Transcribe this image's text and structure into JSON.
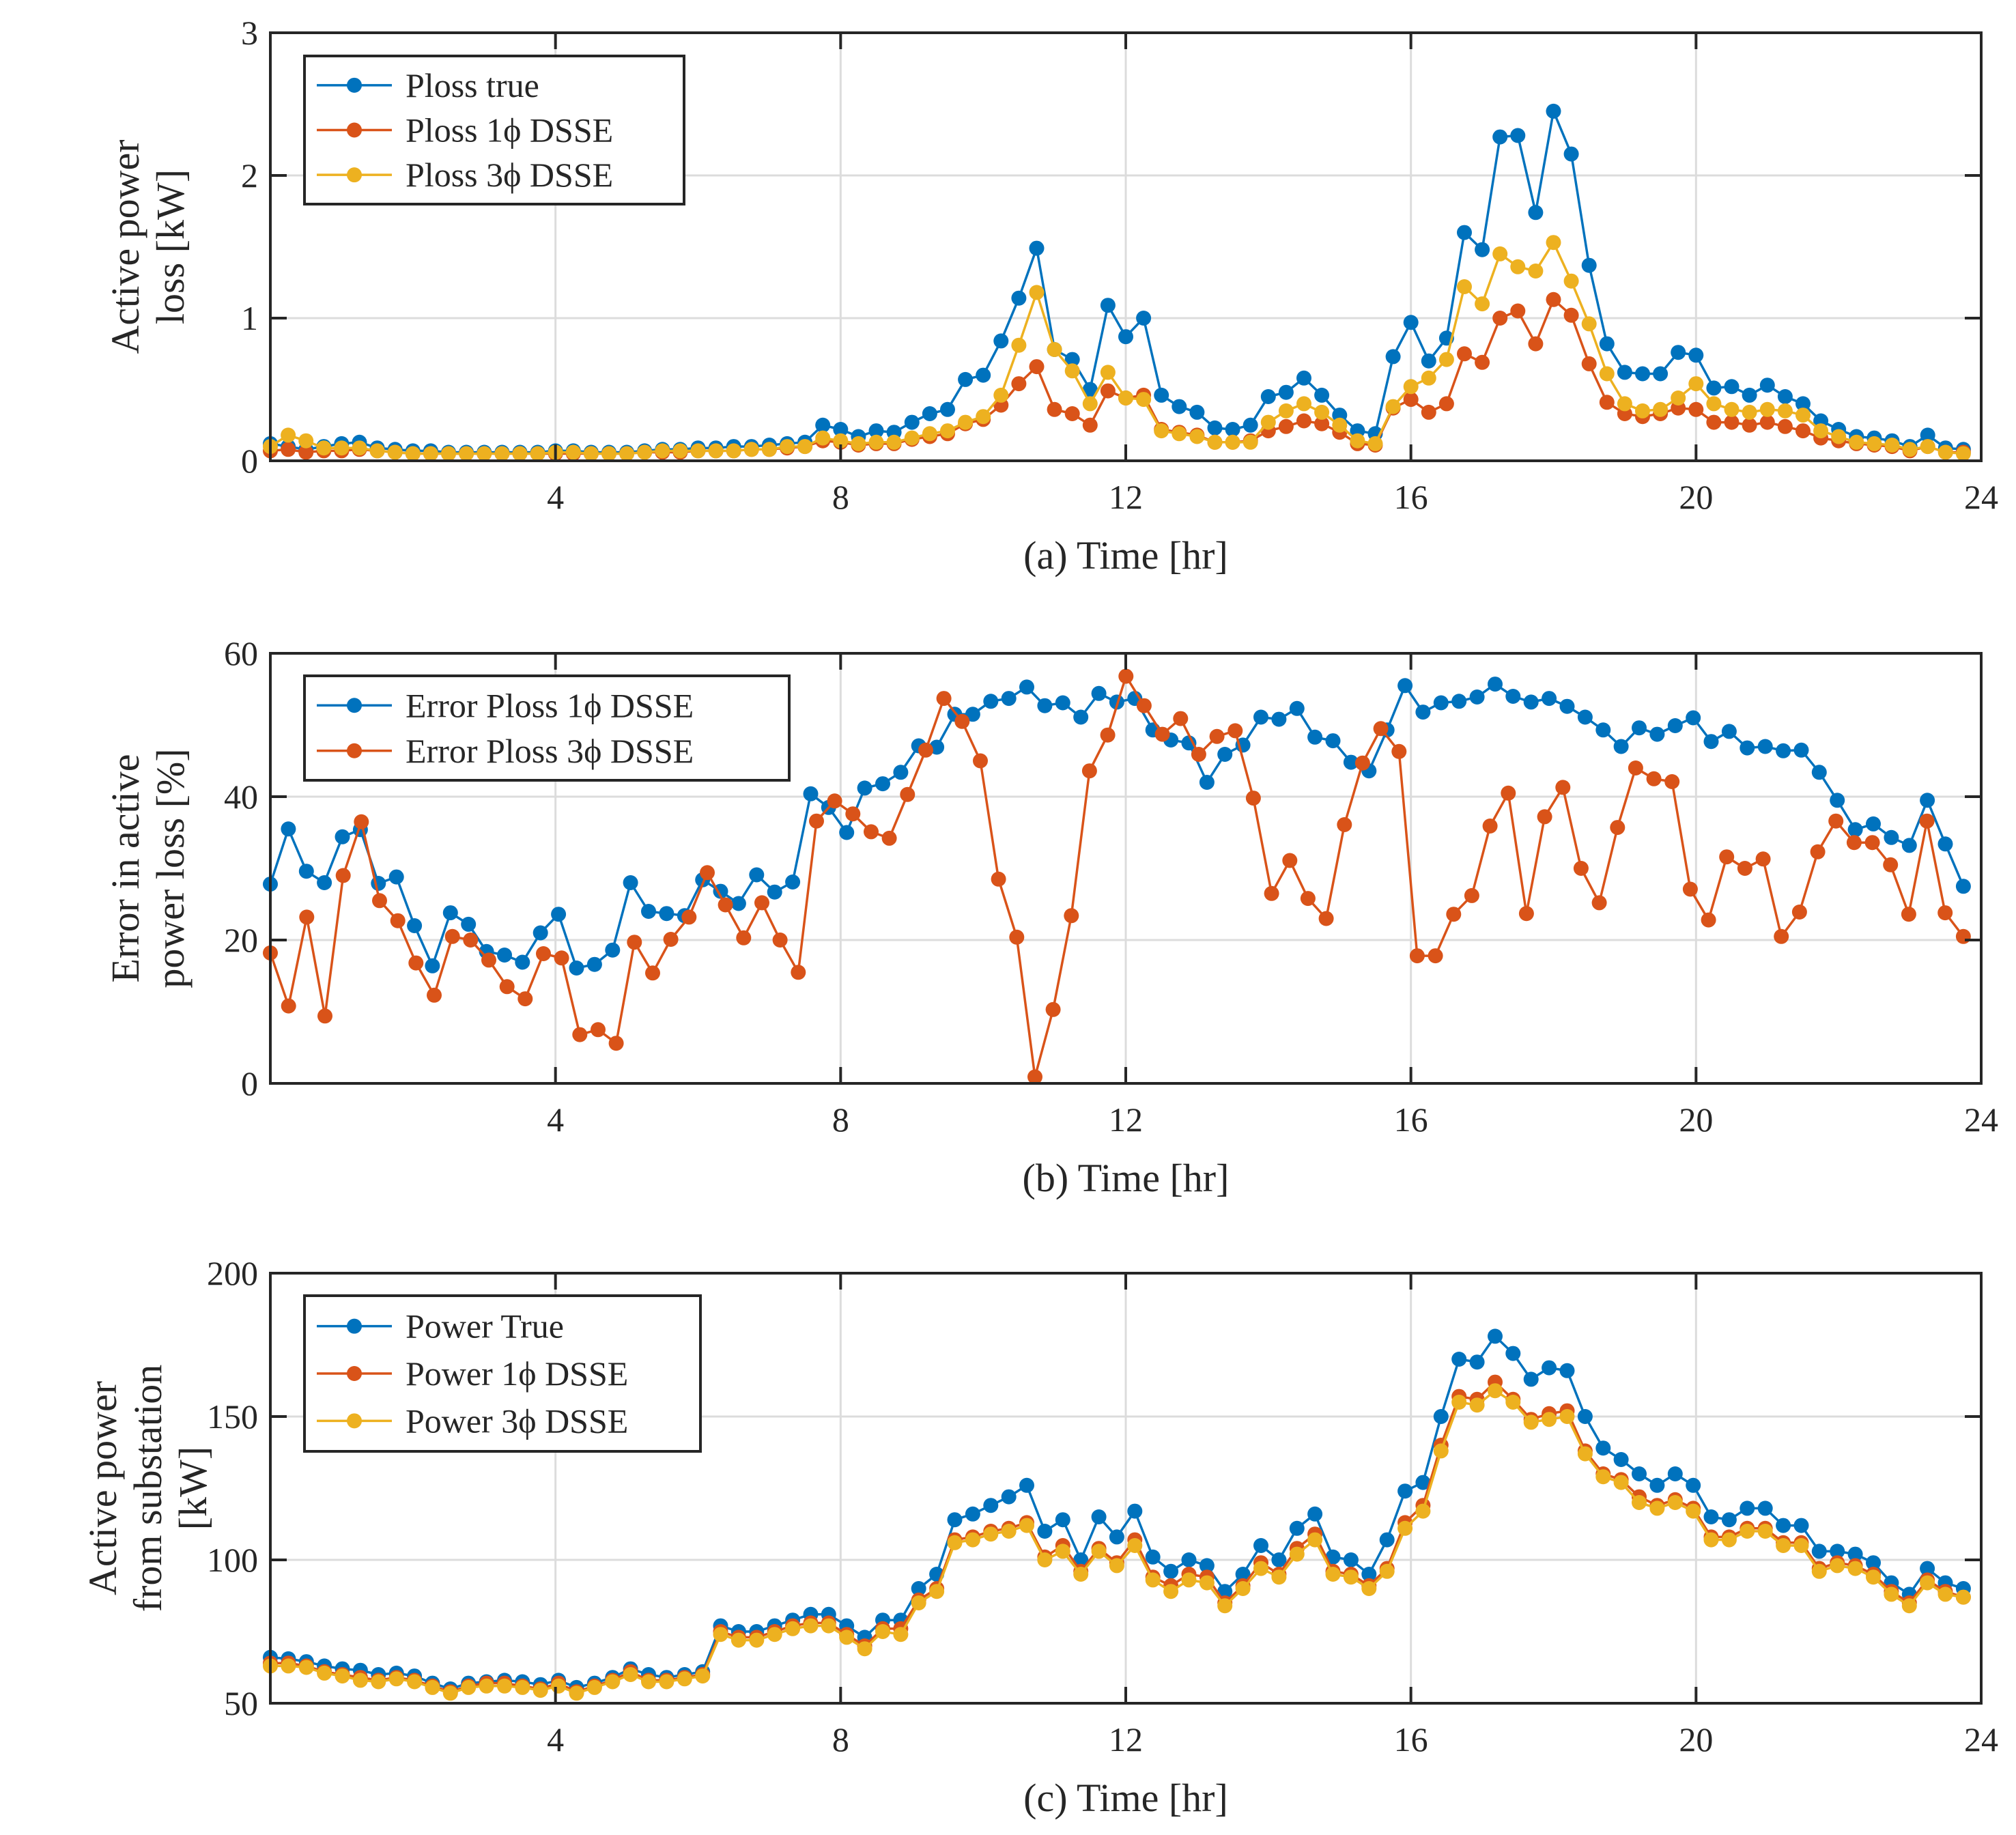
{
  "chart_data": [
    {
      "type": "line",
      "title": "",
      "xlabel": "(a) Time [hr]",
      "ylabel_lines": [
        "Active power",
        "loss [kW]"
      ],
      "xlim": [
        0,
        24
      ],
      "ylim": [
        0,
        3
      ],
      "xticks": [
        4,
        8,
        12,
        16,
        20,
        24
      ],
      "yticks": [
        0,
        1,
        2,
        3
      ],
      "grid": true,
      "legend_position": "top-left",
      "series": [
        {
          "name": "Ploss true",
          "color": "#0072BD",
          "values": [
            0.12,
            0.1,
            0.08,
            0.1,
            0.12,
            0.13,
            0.09,
            0.08,
            0.07,
            0.07,
            0.06,
            0.06,
            0.06,
            0.06,
            0.06,
            0.06,
            0.07,
            0.07,
            0.06,
            0.06,
            0.06,
            0.07,
            0.08,
            0.08,
            0.09,
            0.09,
            0.1,
            0.1,
            0.11,
            0.12,
            0.13,
            0.25,
            0.22,
            0.17,
            0.21,
            0.2,
            0.27,
            0.33,
            0.36,
            0.57,
            0.6,
            0.84,
            1.14,
            1.49,
            0.78,
            0.71,
            0.5,
            1.09,
            0.87,
            1.0,
            0.46,
            0.38,
            0.34,
            0.23,
            0.22,
            0.25,
            0.45,
            0.48,
            0.58,
            0.46,
            0.32,
            0.21,
            0.19,
            0.73,
            0.97,
            0.7,
            0.86,
            1.6,
            1.48,
            2.27,
            2.28,
            1.74,
            2.45,
            2.15,
            1.37,
            0.82,
            0.62,
            0.61,
            0.61,
            0.76,
            0.74,
            0.51,
            0.52,
            0.46,
            0.53,
            0.45,
            0.4,
            0.28,
            0.22,
            0.17,
            0.16,
            0.14,
            0.1,
            0.18,
            0.09,
            0.08
          ]
        },
        {
          "name": "Ploss 1ϕ DSSE",
          "color": "#D95319",
          "values": [
            0.07,
            0.08,
            0.06,
            0.07,
            0.07,
            0.08,
            0.07,
            0.06,
            0.05,
            0.05,
            0.05,
            0.05,
            0.05,
            0.05,
            0.05,
            0.05,
            0.05,
            0.05,
            0.05,
            0.05,
            0.05,
            0.06,
            0.06,
            0.06,
            0.07,
            0.07,
            0.07,
            0.08,
            0.08,
            0.09,
            0.1,
            0.14,
            0.13,
            0.11,
            0.12,
            0.12,
            0.15,
            0.17,
            0.19,
            0.26,
            0.29,
            0.39,
            0.54,
            0.66,
            0.36,
            0.33,
            0.25,
            0.49,
            0.44,
            0.46,
            0.22,
            0.2,
            0.18,
            0.13,
            0.13,
            0.14,
            0.21,
            0.24,
            0.28,
            0.26,
            0.2,
            0.12,
            0.11,
            0.37,
            0.43,
            0.34,
            0.4,
            0.75,
            0.69,
            1.0,
            1.05,
            0.82,
            1.13,
            1.02,
            0.68,
            0.41,
            0.33,
            0.31,
            0.33,
            0.37,
            0.36,
            0.27,
            0.27,
            0.25,
            0.27,
            0.24,
            0.21,
            0.16,
            0.14,
            0.12,
            0.11,
            0.1,
            0.07,
            0.1,
            0.06,
            0.06
          ]
        },
        {
          "name": "Ploss 3ϕ DSSE",
          "color": "#EDB120",
          "values": [
            0.1,
            0.18,
            0.14,
            0.09,
            0.09,
            0.09,
            0.07,
            0.06,
            0.05,
            0.05,
            0.05,
            0.05,
            0.05,
            0.05,
            0.05,
            0.05,
            0.06,
            0.06,
            0.05,
            0.05,
            0.05,
            0.06,
            0.07,
            0.07,
            0.07,
            0.07,
            0.07,
            0.08,
            0.08,
            0.1,
            0.1,
            0.16,
            0.14,
            0.12,
            0.13,
            0.13,
            0.16,
            0.19,
            0.21,
            0.27,
            0.31,
            0.46,
            0.81,
            1.18,
            0.78,
            0.63,
            0.4,
            0.62,
            0.44,
            0.43,
            0.21,
            0.19,
            0.17,
            0.13,
            0.13,
            0.13,
            0.27,
            0.35,
            0.4,
            0.34,
            0.25,
            0.14,
            0.12,
            0.38,
            0.52,
            0.58,
            0.71,
            1.22,
            1.1,
            1.45,
            1.36,
            1.33,
            1.53,
            1.26,
            0.96,
            0.61,
            0.4,
            0.35,
            0.36,
            0.44,
            0.54,
            0.4,
            0.36,
            0.34,
            0.36,
            0.35,
            0.32,
            0.21,
            0.17,
            0.13,
            0.12,
            0.11,
            0.08,
            0.1,
            0.06,
            0.05
          ]
        }
      ]
    },
    {
      "type": "line",
      "title": "",
      "xlabel": "(b) Time [hr]",
      "ylabel_lines": [
        "Error in active",
        "power loss [%]"
      ],
      "xlim": [
        0,
        24
      ],
      "ylim": [
        0,
        60
      ],
      "xticks": [
        4,
        8,
        12,
        16,
        20,
        24
      ],
      "yticks": [
        0,
        20,
        40,
        60
      ],
      "grid": true,
      "legend_position": "top-left",
      "series": [
        {
          "name": "Error Ploss 1ϕ DSSE",
          "color": "#0072BD",
          "values": [
            27.8,
            35.5,
            29.6,
            28.0,
            34.4,
            35.4,
            27.9,
            28.8,
            22.0,
            16.4,
            23.8,
            22.2,
            18.4,
            17.9,
            16.9,
            21.0,
            23.6,
            16.1,
            16.6,
            18.6,
            28.0,
            24.0,
            23.7,
            23.4,
            28.4,
            26.8,
            25.1,
            29.1,
            26.7,
            28.1,
            40.4,
            38.5,
            35.0,
            41.2,
            41.8,
            43.4,
            47.1,
            46.9,
            51.5,
            51.5,
            53.3,
            53.7,
            55.3,
            52.7,
            53.1,
            51.1,
            54.4,
            53.2,
            53.7,
            49.3,
            47.9,
            47.5,
            42.0,
            45.9,
            47.2,
            51.1,
            50.8,
            52.3,
            48.3,
            47.8,
            44.8,
            43.6,
            49.3,
            55.5,
            51.8,
            53.1,
            53.3,
            53.9,
            55.7,
            54.0,
            53.2,
            53.7,
            52.6,
            51.1,
            49.3,
            47.0,
            49.6,
            48.7,
            49.9,
            51.0,
            47.7,
            49.1,
            46.8,
            47.0,
            46.4,
            46.5,
            43.4,
            39.5,
            35.4,
            36.2,
            34.3,
            33.2,
            39.5,
            33.4,
            27.5
          ]
        },
        {
          "name": "Error Ploss 3ϕ DSSE",
          "color": "#D95319",
          "values": [
            18.2,
            10.8,
            23.2,
            9.4,
            29.0,
            36.5,
            25.5,
            22.7,
            16.8,
            12.3,
            20.5,
            20.0,
            17.2,
            13.5,
            11.8,
            18.1,
            17.5,
            6.8,
            7.5,
            5.6,
            19.7,
            15.4,
            20.1,
            23.2,
            29.4,
            24.9,
            20.3,
            25.2,
            20.0,
            15.5,
            36.6,
            39.4,
            37.6,
            35.1,
            34.2,
            40.3,
            46.5,
            53.7,
            50.5,
            45.0,
            28.5,
            20.4,
            0.9,
            10.3,
            23.4,
            43.6,
            48.6,
            56.8,
            52.7,
            48.7,
            50.9,
            45.9,
            48.4,
            49.2,
            39.8,
            26.5,
            31.1,
            25.8,
            23.0,
            36.1,
            44.7,
            49.5,
            46.3,
            17.8,
            17.8,
            23.6,
            26.2,
            35.9,
            40.5,
            23.7,
            37.2,
            41.3,
            30.0,
            25.2,
            35.7,
            44.0,
            42.5,
            42.1,
            27.1,
            22.8,
            31.6,
            30.0,
            31.3,
            20.5,
            23.9,
            32.3,
            36.6,
            33.6,
            33.6,
            30.5,
            23.6,
            36.6,
            23.8,
            20.5
          ]
        }
      ]
    },
    {
      "type": "line",
      "title": "",
      "xlabel": "(c) Time [hr]",
      "ylabel_lines": [
        "Active power",
        "from substation",
        "[kW]"
      ],
      "xlim": [
        0,
        24
      ],
      "ylim": [
        50,
        200
      ],
      "xticks": [
        4,
        8,
        12,
        16,
        20,
        24
      ],
      "yticks": [
        50,
        100,
        150,
        200
      ],
      "grid": true,
      "legend_position": "top-left",
      "series": [
        {
          "name": "Power True",
          "color": "#0072BD",
          "values": [
            66,
            65.5,
            64.5,
            63,
            62,
            61.5,
            60,
            60.5,
            59.5,
            57,
            55,
            57,
            57.5,
            58,
            57.5,
            56.5,
            58,
            55.5,
            57,
            59,
            62,
            60,
            59,
            60,
            61,
            77,
            75,
            75,
            77,
            79,
            81,
            81,
            77,
            73,
            79,
            79,
            90,
            95,
            114,
            116,
            119,
            122,
            126,
            110,
            114,
            100,
            115,
            108,
            117,
            101,
            96,
            100,
            98,
            89,
            95,
            105,
            100,
            111,
            116,
            101,
            100,
            95,
            107,
            124,
            127,
            150,
            170,
            169,
            178,
            172,
            163,
            167,
            166,
            150,
            139,
            135,
            130,
            126,
            130,
            126,
            115,
            114,
            118,
            118,
            112,
            112,
            103,
            103,
            102,
            99,
            92,
            88,
            97,
            92,
            90
          ]
        },
        {
          "name": "Power 1ϕ DSSE",
          "color": "#D95319",
          "values": [
            64,
            64,
            63,
            61,
            60,
            59,
            58,
            59,
            58,
            56,
            54,
            56,
            57,
            57,
            56,
            55,
            57,
            54,
            56,
            58,
            61,
            58,
            58,
            59,
            60,
            75,
            73,
            73,
            75,
            77,
            78,
            78,
            74,
            70,
            76,
            76,
            86,
            90,
            107,
            108,
            110,
            111,
            113,
            101,
            105,
            96,
            104,
            99,
            107,
            94,
            91,
            95,
            94,
            85,
            91,
            99,
            95,
            104,
            109,
            96,
            95,
            91,
            97,
            113,
            119,
            140,
            157,
            156,
            162,
            156,
            149,
            151,
            152,
            138,
            130,
            128,
            122,
            119,
            121,
            118,
            108,
            108,
            111,
            111,
            106,
            106,
            97,
            99,
            98,
            95,
            89,
            85,
            93,
            89,
            87
          ]
        },
        {
          "name": "Power 3ϕ DSSE",
          "color": "#EDB120",
          "values": [
            63,
            63,
            62.5,
            60.5,
            59.5,
            58,
            57.5,
            58.5,
            57.5,
            55.5,
            53.5,
            55.5,
            56,
            56,
            55.5,
            54.5,
            56,
            53.5,
            55.5,
            57.5,
            60,
            57.5,
            57.5,
            58.5,
            59.5,
            74,
            72,
            72,
            74,
            76,
            77,
            77,
            73,
            69,
            75,
            74,
            85,
            89,
            106,
            107,
            109,
            110,
            112,
            100,
            103,
            95,
            103,
            98,
            105,
            93,
            89,
            93,
            92,
            84,
            90,
            97,
            94,
            102,
            107,
            95,
            94,
            90,
            96,
            111,
            117,
            138,
            155,
            154,
            159,
            155,
            148,
            149,
            150,
            137,
            129,
            127,
            120,
            118,
            120,
            117,
            107,
            107,
            110,
            110,
            105,
            105,
            96,
            98,
            97,
            94,
            88,
            84,
            92,
            88,
            87
          ]
        }
      ]
    }
  ]
}
